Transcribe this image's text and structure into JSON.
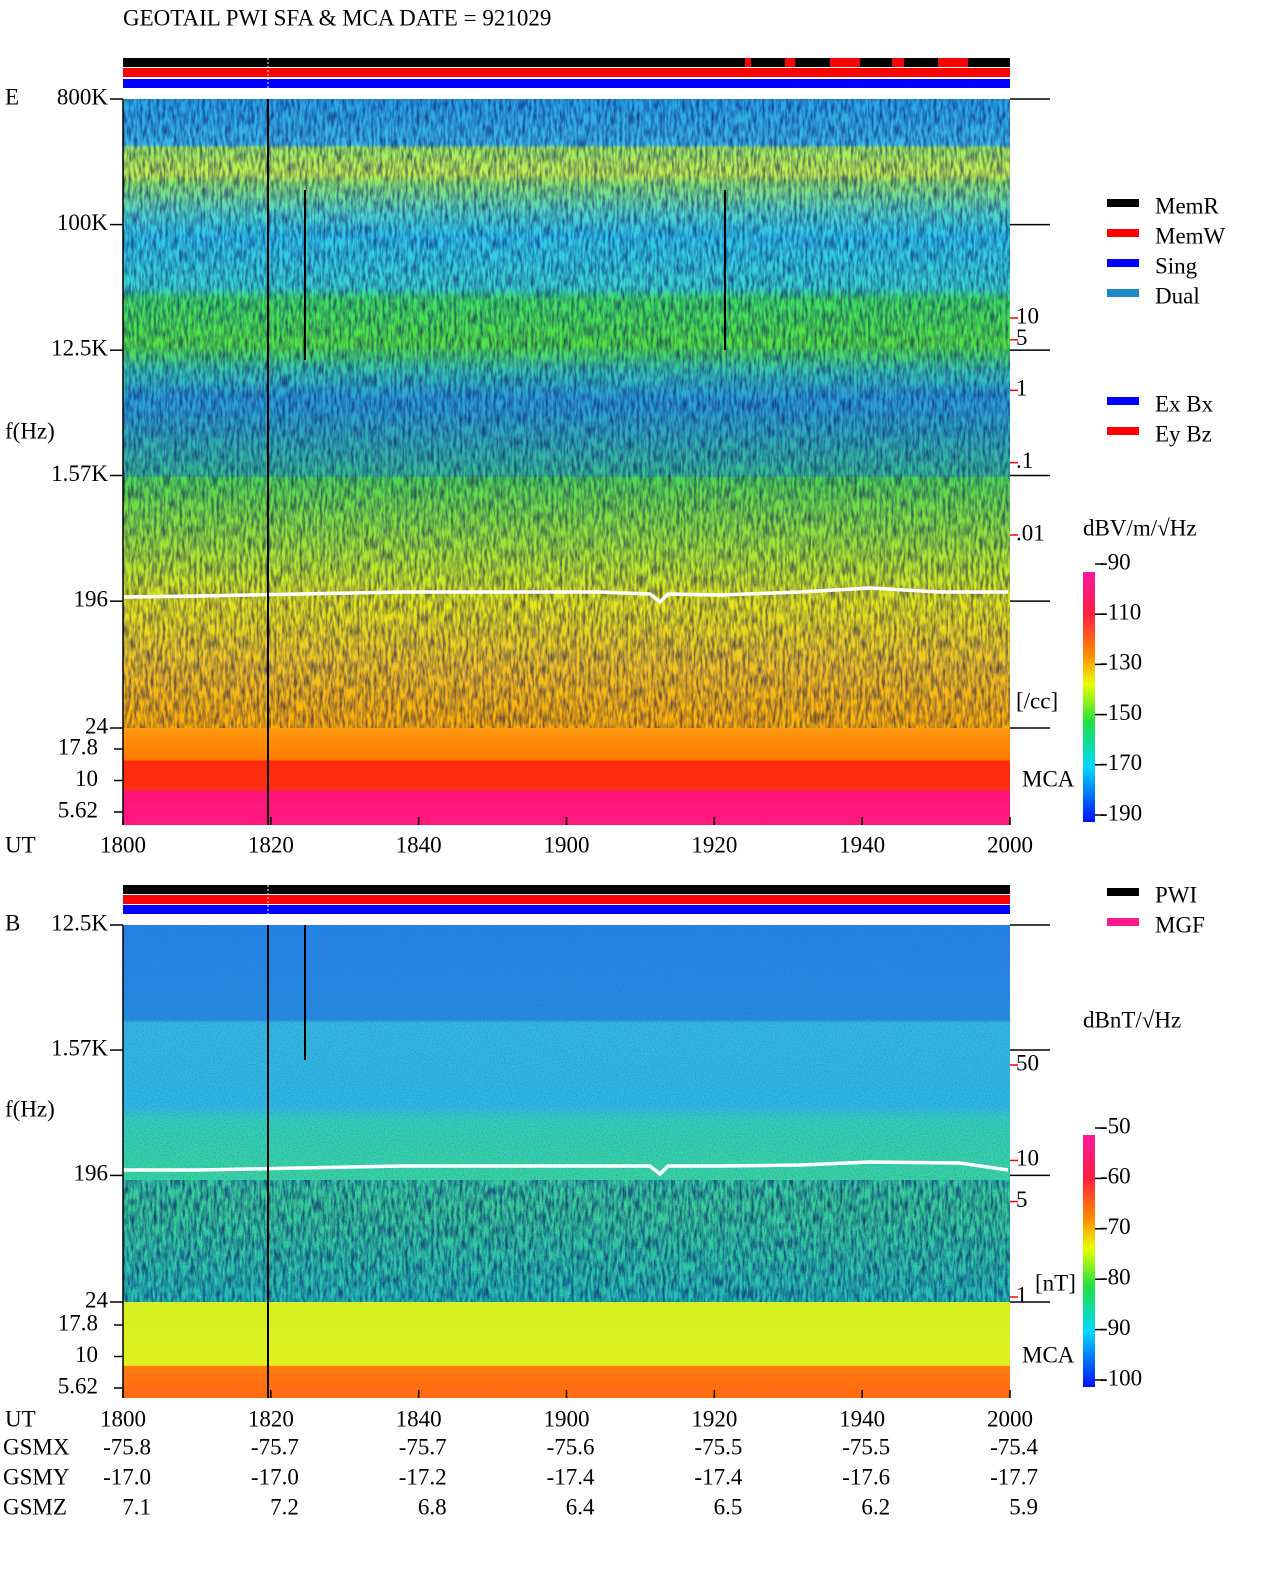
{
  "title": "GEOTAIL  PWI SFA & MCA   DATE = 921029",
  "x_ticks": [
    "1800",
    "1820",
    "1840",
    "1900",
    "1920",
    "1940",
    "2000"
  ],
  "panels": [
    {
      "label": "E",
      "y_label": "f(Hz)",
      "x_label": "UT",
      "yticks": [
        {
          "value": 800000,
          "label": "800K"
        },
        {
          "value": 100000,
          "label": "100K"
        },
        {
          "value": 12500,
          "label": "12.5K"
        },
        {
          "value": 1570,
          "label": "1.57K"
        },
        196,
        24
      ],
      "mca_ticks": [
        17.8,
        10,
        5.62
      ],
      "mca_label": "MCA",
      "density_ticks": [
        10,
        5,
        1,
        {
          "value": 0.1,
          "label": ".1"
        },
        {
          "value": 0.01,
          "label": ".01"
        }
      ],
      "density_unit": "[/cc]",
      "colorbar_unit": "dBV/m/√Hz",
      "colorbar_ticks": [
        -90,
        -110,
        -130,
        -150,
        -170,
        -190
      ]
    },
    {
      "label": "B",
      "y_label": "f(Hz)",
      "x_label": "UT",
      "yticks": [
        {
          "value": 12500,
          "label": "12.5K"
        },
        {
          "value": 1570,
          "label": "1.57K"
        },
        196,
        24
      ],
      "mca_ticks": [
        17.8,
        10,
        5.62
      ],
      "mca_label": "MCA",
      "density_ticks": [
        50,
        10,
        5,
        1
      ],
      "density_unit": "[nT]",
      "colorbar_unit": "dBnT/√Hz",
      "colorbar_ticks": [
        -50,
        -60,
        -70,
        -80,
        -90,
        -100
      ]
    }
  ],
  "legends": {
    "status": [
      {
        "name": "MemR",
        "color": "#000000"
      },
      {
        "name": "MemW",
        "color": "#ff0000"
      },
      {
        "name": "Sing",
        "color": "#0000ff"
      },
      {
        "name": "Dual",
        "color": "#1e88c8"
      }
    ],
    "components": [
      {
        "name": "Ex Bx",
        "color": "#0000ff"
      },
      {
        "name": "Ey Bz",
        "color": "#ff0000"
      }
    ],
    "sources": [
      {
        "name": "PWI",
        "color": "#000000"
      },
      {
        "name": "MGF",
        "color": "#ff1a8c"
      }
    ]
  },
  "orbit": {
    "rows": [
      {
        "label": "GSMX",
        "values": [
          "-75.8",
          "-75.7",
          "-75.7",
          "-75.6",
          "-75.5",
          "-75.5",
          "-75.4"
        ]
      },
      {
        "label": "GSMY",
        "values": [
          "-17.0",
          "-17.0",
          "-17.2",
          "-17.4",
          "-17.4",
          "-17.6",
          "-17.7"
        ]
      },
      {
        "label": "GSMZ",
        "values": [
          "7.1",
          "7.2",
          "6.8",
          "6.4",
          "6.5",
          "6.2",
          "5.9"
        ]
      }
    ]
  }
}
